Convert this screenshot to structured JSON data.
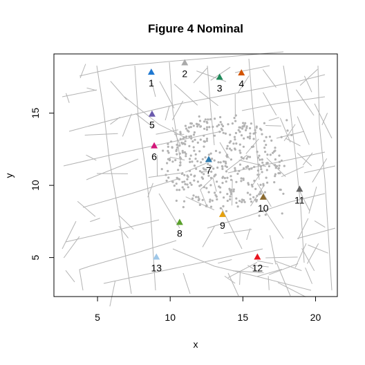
{
  "chart_data": {
    "type": "scatter",
    "title": "Figure 4 Nominal",
    "xlabel": "x",
    "ylabel": "y",
    "xlim": [
      2.0,
      21.5
    ],
    "ylim": [
      2.3,
      19.1
    ],
    "x_ticks": [
      5,
      10,
      15,
      20
    ],
    "y_ticks": [
      5,
      10,
      15
    ],
    "grid": false,
    "pumps": [
      {
        "label": "1",
        "x": 8.7,
        "y": 17.85,
        "color": "#1f78d1"
      },
      {
        "label": "2",
        "x": 11.0,
        "y": 18.5,
        "color": "#aaaaaa"
      },
      {
        "label": "3",
        "x": 13.4,
        "y": 17.5,
        "color": "#1f8a5a"
      },
      {
        "label": "4",
        "x": 14.9,
        "y": 17.8,
        "color": "#d35400"
      },
      {
        "label": "5",
        "x": 8.75,
        "y": 14.95,
        "color": "#6a5aad"
      },
      {
        "label": "6",
        "x": 8.9,
        "y": 12.75,
        "color": "#d3177a"
      },
      {
        "label": "7",
        "x": 12.65,
        "y": 11.8,
        "color": "#2a7ab0"
      },
      {
        "label": "8",
        "x": 10.65,
        "y": 7.45,
        "color": "#5aa02c"
      },
      {
        "label": "9",
        "x": 13.6,
        "y": 8.0,
        "color": "#e5a00d"
      },
      {
        "label": "10",
        "x": 16.4,
        "y": 9.2,
        "color": "#8b6a2e"
      },
      {
        "label": "11",
        "x": 18.9,
        "y": 9.75,
        "color": "#666666"
      },
      {
        "label": "12",
        "x": 16.0,
        "y": 5.05,
        "color": "#e8141e"
      },
      {
        "label": "13",
        "x": 9.05,
        "y": 5.05,
        "color": "#9ec7e8"
      }
    ]
  }
}
